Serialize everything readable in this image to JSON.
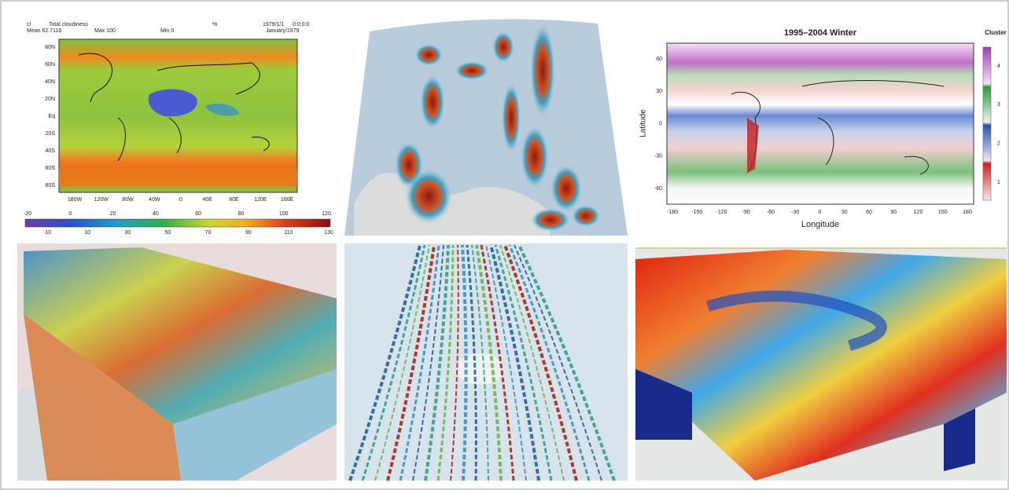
{
  "panel1": {
    "header": {
      "variable": "cl",
      "long_name": "Total cloudiness",
      "units": "%",
      "date": "1979/1/1",
      "time": "0:0:0:0",
      "mean": "Mean 62.7116",
      "max": "Max 100",
      "min": "Min 0",
      "period": "January/1979"
    },
    "lat_labels": [
      "80N",
      "60N",
      "40N",
      "20N",
      "Eq",
      "20S",
      "40S",
      "60S",
      "80S"
    ],
    "lon_labels": [
      "180W",
      "120W",
      "80W",
      "40W",
      "0",
      "40E",
      "80E",
      "120E",
      "160E"
    ],
    "colorbar_top": [
      "-20",
      "0",
      "20",
      "40",
      "60",
      "80",
      "100",
      "120"
    ],
    "colorbar_bottom": [
      "-10",
      "10",
      "30",
      "50",
      "70",
      "90",
      "110",
      "130"
    ]
  },
  "panel3": {
    "title": "1995–2004 Winter",
    "legend_title": "Cluster",
    "y_label": "Latitude",
    "x_label": "Longitude",
    "lat_ticks": [
      "60",
      "30",
      "0",
      "-30",
      "-60"
    ],
    "lon_ticks": [
      "-180",
      "-150",
      "-120",
      "-90",
      "-60",
      "-30",
      "0",
      "30",
      "60",
      "90",
      "120",
      "150",
      "180"
    ],
    "clusters": [
      "4",
      "3",
      "2",
      "1"
    ]
  }
}
